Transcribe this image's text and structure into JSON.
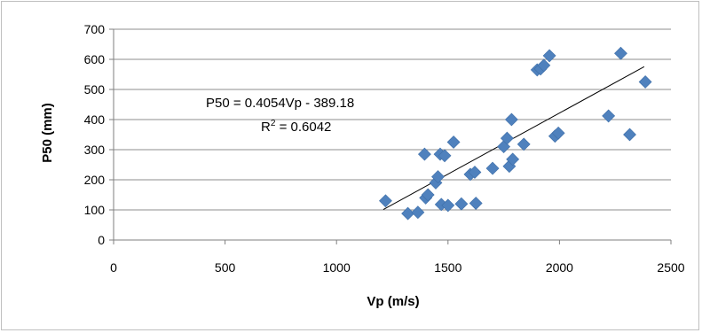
{
  "chart_data": {
    "type": "scatter",
    "xlabel": "Vp (m/s)",
    "ylabel": "P50 (mm)",
    "xlim": [
      0,
      2500
    ],
    "ylim": [
      0,
      700
    ],
    "x_ticks": [
      "0",
      "500",
      "1000",
      "1500",
      "2000",
      "2500"
    ],
    "y_ticks": [
      "0",
      "100",
      "200",
      "300",
      "400",
      "500",
      "600",
      "700"
    ],
    "grid": "horizontal",
    "legend": "none",
    "marker_color": "#4f81bd",
    "trendline": {
      "slope": 0.4054,
      "intercept": -389.18,
      "x_range": [
        1210,
        2380
      ],
      "equation": "P50 = 0.4054Vp - 389.18",
      "r2_prefix": "R",
      "r2_exponent": "2",
      "r2_value": " = 0.6042"
    },
    "points": [
      {
        "x": 1220,
        "y": 130
      },
      {
        "x": 1320,
        "y": 88
      },
      {
        "x": 1365,
        "y": 92
      },
      {
        "x": 1395,
        "y": 285
      },
      {
        "x": 1400,
        "y": 140
      },
      {
        "x": 1410,
        "y": 150
      },
      {
        "x": 1445,
        "y": 190
      },
      {
        "x": 1455,
        "y": 210
      },
      {
        "x": 1465,
        "y": 285
      },
      {
        "x": 1470,
        "y": 118
      },
      {
        "x": 1485,
        "y": 280
      },
      {
        "x": 1500,
        "y": 115
      },
      {
        "x": 1525,
        "y": 325
      },
      {
        "x": 1560,
        "y": 120
      },
      {
        "x": 1600,
        "y": 218
      },
      {
        "x": 1620,
        "y": 225
      },
      {
        "x": 1625,
        "y": 122
      },
      {
        "x": 1700,
        "y": 238
      },
      {
        "x": 1750,
        "y": 310
      },
      {
        "x": 1765,
        "y": 338
      },
      {
        "x": 1775,
        "y": 245
      },
      {
        "x": 1785,
        "y": 400
      },
      {
        "x": 1790,
        "y": 268
      },
      {
        "x": 1840,
        "y": 318
      },
      {
        "x": 1900,
        "y": 565
      },
      {
        "x": 1915,
        "y": 568
      },
      {
        "x": 1930,
        "y": 580
      },
      {
        "x": 1955,
        "y": 612
      },
      {
        "x": 1980,
        "y": 345
      },
      {
        "x": 1995,
        "y": 355
      },
      {
        "x": 2220,
        "y": 412
      },
      {
        "x": 2275,
        "y": 620
      },
      {
        "x": 2315,
        "y": 350
      },
      {
        "x": 2385,
        "y": 525
      }
    ]
  }
}
